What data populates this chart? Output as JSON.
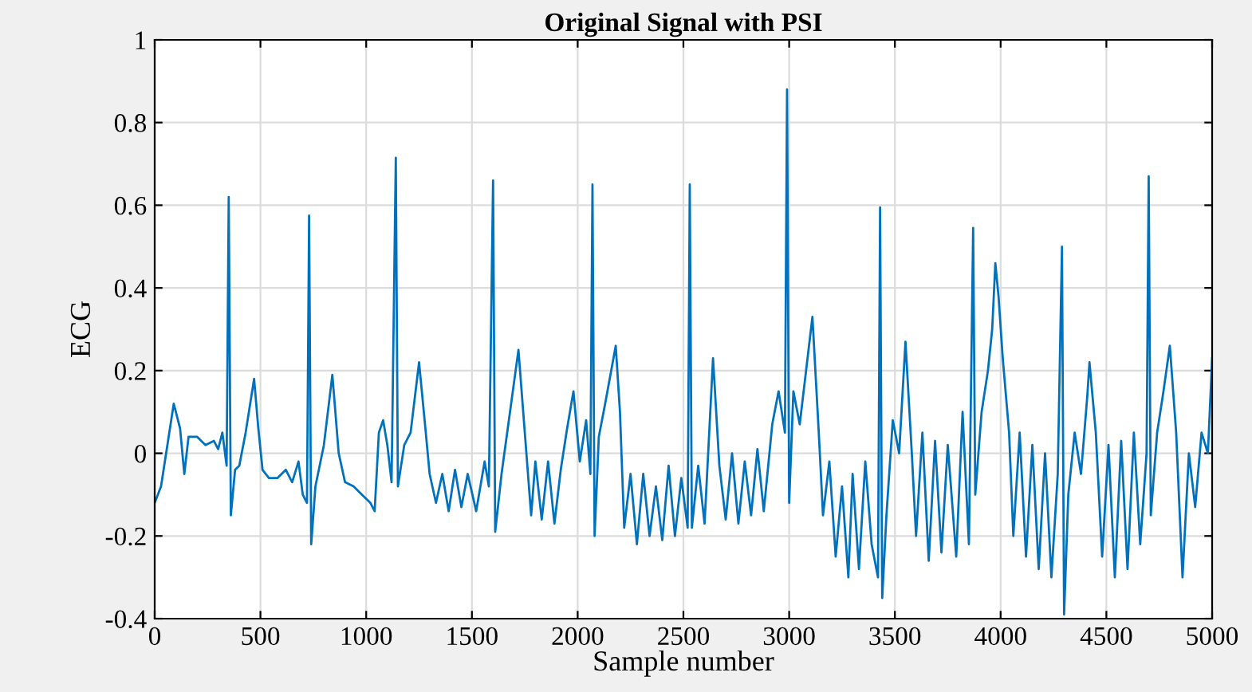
{
  "chart_data": {
    "type": "line",
    "title": "Original Signal with PSI",
    "xlabel": "Sample number",
    "ylabel": "ECG",
    "xlim": [
      0,
      5000
    ],
    "xticks": [
      0,
      500,
      1000,
      1500,
      2000,
      2500,
      3000,
      3500,
      4000,
      4500,
      5000
    ],
    "ylim": [
      -0.4,
      1
    ],
    "yticks": [
      -0.4,
      -0.2,
      0,
      0.2,
      0.4,
      0.6,
      0.8,
      1
    ],
    "grid": true,
    "marker": "none",
    "line_style": "solid",
    "series": [
      {
        "color": "#0072bd",
        "x": [
          0,
          30,
          60,
          90,
          120,
          140,
          160,
          200,
          240,
          280,
          300,
          320,
          340,
          350,
          360,
          380,
          400,
          430,
          470,
          490,
          510,
          540,
          580,
          620,
          650,
          680,
          700,
          720,
          730,
          740,
          760,
          800,
          840,
          870,
          900,
          940,
          980,
          1020,
          1040,
          1060,
          1080,
          1100,
          1120,
          1140,
          1150,
          1180,
          1210,
          1250,
          1280,
          1300,
          1330,
          1360,
          1390,
          1420,
          1450,
          1480,
          1520,
          1560,
          1580,
          1600,
          1610,
          1640,
          1680,
          1720,
          1750,
          1780,
          1800,
          1830,
          1860,
          1890,
          1920,
          1950,
          1980,
          2010,
          2040,
          2060,
          2070,
          2080,
          2100,
          2130,
          2180,
          2200,
          2220,
          2250,
          2280,
          2310,
          2340,
          2370,
          2400,
          2430,
          2460,
          2490,
          2520,
          2530,
          2540,
          2570,
          2600,
          2640,
          2670,
          2700,
          2730,
          2760,
          2790,
          2820,
          2850,
          2880,
          2920,
          2950,
          2980,
          2990,
          3000,
          3020,
          3050,
          3080,
          3110,
          3140,
          3160,
          3190,
          3220,
          3250,
          3280,
          3300,
          3330,
          3360,
          3390,
          3420,
          3430,
          3440,
          3460,
          3490,
          3520,
          3550,
          3580,
          3600,
          3630,
          3660,
          3690,
          3720,
          3750,
          3790,
          3820,
          3850,
          3870,
          3880,
          3910,
          3940,
          3960,
          3975,
          3990,
          4010,
          4040,
          4060,
          4090,
          4120,
          4150,
          4180,
          4210,
          4240,
          4270,
          4290,
          4300,
          4320,
          4350,
          4380,
          4410,
          4420,
          4450,
          4480,
          4510,
          4540,
          4570,
          4600,
          4630,
          4660,
          4690,
          4700,
          4710,
          4740,
          4770,
          4800,
          4830,
          4860,
          4890,
          4920,
          4950,
          4980,
          5000
        ],
        "values": [
          -0.12,
          -0.08,
          0.02,
          0.12,
          0.06,
          -0.05,
          0.04,
          0.04,
          0.02,
          0.03,
          0.01,
          0.05,
          -0.03,
          0.62,
          -0.15,
          -0.04,
          -0.03,
          0.05,
          0.18,
          0.06,
          -0.04,
          -0.06,
          -0.06,
          -0.04,
          -0.07,
          -0.02,
          -0.1,
          -0.12,
          0.575,
          -0.22,
          -0.08,
          0.02,
          0.19,
          0.0,
          -0.07,
          -0.08,
          -0.1,
          -0.12,
          -0.14,
          0.05,
          0.08,
          0.02,
          -0.07,
          0.715,
          -0.08,
          0.02,
          0.05,
          0.22,
          0.06,
          -0.05,
          -0.12,
          -0.05,
          -0.14,
          -0.04,
          -0.13,
          -0.05,
          -0.14,
          -0.02,
          -0.08,
          0.66,
          -0.19,
          -0.05,
          0.1,
          0.25,
          0.05,
          -0.15,
          -0.02,
          -0.16,
          -0.02,
          -0.17,
          -0.04,
          0.06,
          0.15,
          -0.02,
          0.08,
          -0.05,
          0.65,
          -0.2,
          0.04,
          0.12,
          0.26,
          0.1,
          -0.18,
          -0.05,
          -0.22,
          -0.05,
          -0.2,
          -0.08,
          -0.21,
          -0.03,
          -0.2,
          -0.06,
          -0.18,
          0.65,
          -0.18,
          -0.03,
          -0.17,
          0.23,
          -0.03,
          -0.16,
          0.0,
          -0.17,
          -0.02,
          -0.15,
          0.01,
          -0.14,
          0.07,
          0.15,
          0.05,
          0.88,
          -0.12,
          0.15,
          0.07,
          0.2,
          0.33,
          0.05,
          -0.15,
          -0.02,
          -0.25,
          -0.08,
          -0.3,
          -0.05,
          -0.28,
          -0.02,
          -0.22,
          -0.3,
          0.595,
          -0.35,
          -0.15,
          0.08,
          0.0,
          0.27,
          0.0,
          -0.2,
          0.05,
          -0.26,
          0.03,
          -0.24,
          0.02,
          -0.25,
          0.1,
          -0.22,
          0.545,
          -0.1,
          0.1,
          0.2,
          0.3,
          0.46,
          0.38,
          0.23,
          0.05,
          -0.2,
          0.05,
          -0.25,
          0.02,
          -0.28,
          0.0,
          -0.3,
          -0.05,
          0.5,
          -0.39,
          -0.1,
          0.05,
          -0.05,
          0.14,
          0.22,
          0.05,
          -0.25,
          0.02,
          -0.3,
          0.03,
          -0.28,
          0.05,
          -0.22,
          0.0,
          0.67,
          -0.15,
          0.05,
          0.15,
          0.26,
          0.05,
          -0.3,
          0.0,
          -0.13,
          0.05,
          0.0,
          0.23
        ]
      }
    ]
  }
}
